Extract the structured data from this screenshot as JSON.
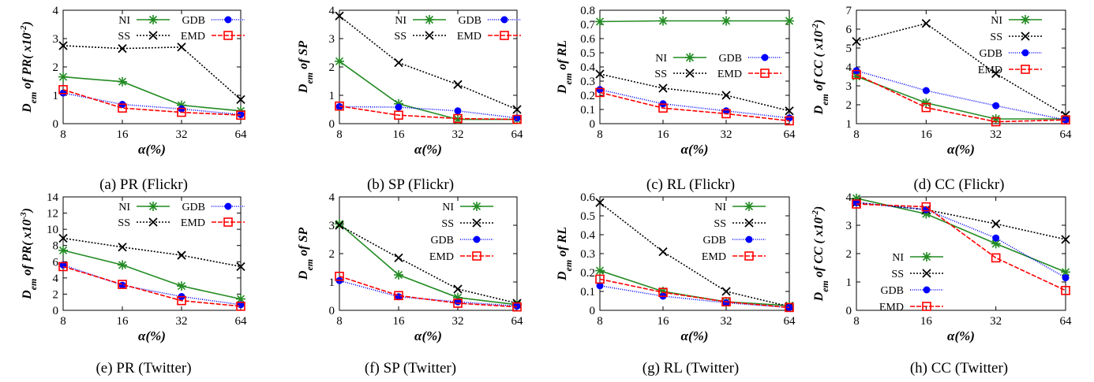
{
  "colors": {
    "NI": "#228b22",
    "SS": "#000000",
    "GDB": "#0000ff",
    "EMD": "#ff0000"
  },
  "chart_data": [
    {
      "type": "line",
      "caption": "(a) PR (Flickr)",
      "ylabel": "D_em of PR( x10^-2)",
      "xlabel": "α(%)",
      "categories": [
        "8",
        "16",
        "32",
        "64"
      ],
      "ylim": [
        0,
        4
      ],
      "yticks": [
        0,
        1,
        2,
        3,
        4
      ],
      "legend_layout": "two-column",
      "series": [
        {
          "name": "NI",
          "values": [
            1.65,
            1.48,
            0.65,
            0.45
          ]
        },
        {
          "name": "SS",
          "values": [
            2.75,
            2.65,
            2.7,
            0.85
          ]
        },
        {
          "name": "GDB",
          "values": [
            1.08,
            0.68,
            0.52,
            0.32
          ]
        },
        {
          "name": "EMD",
          "values": [
            1.2,
            0.55,
            0.4,
            0.3
          ]
        }
      ]
    },
    {
      "type": "line",
      "caption": "(b) SP (Flickr)",
      "ylabel": "D_em of SP",
      "xlabel": "α(%)",
      "categories": [
        "8",
        "16",
        "32",
        "64"
      ],
      "ylim": [
        0,
        4
      ],
      "yticks": [
        0,
        1,
        2,
        3,
        4
      ],
      "legend_layout": "two-column",
      "series": [
        {
          "name": "NI",
          "values": [
            2.2,
            0.7,
            0.15,
            0.15
          ]
        },
        {
          "name": "SS",
          "values": [
            3.8,
            2.15,
            1.38,
            0.5
          ]
        },
        {
          "name": "GDB",
          "values": [
            0.6,
            0.58,
            0.45,
            0.2
          ]
        },
        {
          "name": "EMD",
          "values": [
            0.62,
            0.3,
            0.18,
            0.15
          ]
        }
      ]
    },
    {
      "type": "line",
      "caption": "(c) RL (Flickr)",
      "ylabel": "D_em of RL",
      "xlabel": "α(%)",
      "categories": [
        "8",
        "16",
        "32",
        "64"
      ],
      "ylim": [
        0,
        0.8
      ],
      "yticks": [
        0,
        0.1,
        0.2,
        0.3,
        0.4,
        0.5,
        0.6,
        0.7,
        0.8
      ],
      "legend_layout": "two-column-middle",
      "series": [
        {
          "name": "NI",
          "values": [
            0.72,
            0.725,
            0.725,
            0.725
          ]
        },
        {
          "name": "SS",
          "values": [
            0.35,
            0.25,
            0.2,
            0.09
          ]
        },
        {
          "name": "GDB",
          "values": [
            0.24,
            0.14,
            0.09,
            0.04
          ]
        },
        {
          "name": "EMD",
          "values": [
            0.22,
            0.11,
            0.07,
            0.02
          ]
        }
      ]
    },
    {
      "type": "line",
      "caption": "(d) CC (Flickr)",
      "ylabel": "D_em of CC ( x10^-2)",
      "xlabel": "α(%)",
      "categories": [
        "8",
        "16",
        "32",
        "64"
      ],
      "ylim": [
        1,
        7
      ],
      "yticks": [
        1,
        2,
        3,
        4,
        5,
        6,
        7
      ],
      "legend_layout": "one-column-right",
      "series": [
        {
          "name": "NI",
          "values": [
            3.5,
            2.1,
            1.25,
            1.25
          ]
        },
        {
          "name": "SS",
          "values": [
            5.35,
            6.3,
            3.65,
            1.45
          ]
        },
        {
          "name": "GDB",
          "values": [
            3.8,
            2.75,
            1.95,
            1.2
          ]
        },
        {
          "name": "EMD",
          "values": [
            3.6,
            1.85,
            1.1,
            1.2
          ]
        }
      ]
    },
    {
      "type": "line",
      "caption": "(e) PR (Twitter)",
      "ylabel": "D_em of PR( x10^-3)",
      "xlabel": "α(%)",
      "categories": [
        "8",
        "16",
        "32",
        "64"
      ],
      "ylim": [
        0,
        14
      ],
      "yticks": [
        0,
        2,
        4,
        6,
        8,
        10,
        12,
        14
      ],
      "legend_layout": "two-column",
      "series": [
        {
          "name": "NI",
          "values": [
            7.4,
            5.6,
            3.0,
            1.4
          ]
        },
        {
          "name": "SS",
          "values": [
            8.9,
            7.8,
            6.8,
            5.4
          ]
        },
        {
          "name": "GDB",
          "values": [
            5.6,
            3.1,
            1.7,
            0.7
          ]
        },
        {
          "name": "EMD",
          "values": [
            5.4,
            3.2,
            1.2,
            0.5
          ]
        }
      ]
    },
    {
      "type": "line",
      "caption": "(f) SP (Twitter)",
      "ylabel": "D_em of SP",
      "xlabel": "α(%)",
      "categories": [
        "8",
        "16",
        "32",
        "64"
      ],
      "ylim": [
        0,
        4
      ],
      "yticks": [
        0,
        1,
        2,
        3,
        4
      ],
      "legend_layout": "one-column-right",
      "series": [
        {
          "name": "NI",
          "values": [
            3.05,
            1.25,
            0.45,
            0.2
          ]
        },
        {
          "name": "SS",
          "values": [
            3.0,
            1.85,
            0.75,
            0.25
          ]
        },
        {
          "name": "GDB",
          "values": [
            1.05,
            0.48,
            0.3,
            0.15
          ]
        },
        {
          "name": "EMD",
          "values": [
            1.2,
            0.52,
            0.25,
            0.12
          ]
        }
      ]
    },
    {
      "type": "line",
      "caption": "(g) RL (Twitter)",
      "ylabel": "D_em of RL",
      "xlabel": "α(%)",
      "categories": [
        "8",
        "16",
        "32",
        "64"
      ],
      "ylim": [
        0,
        0.6
      ],
      "yticks": [
        0,
        0.1,
        0.2,
        0.3,
        0.4,
        0.5,
        0.6
      ],
      "legend_layout": "one-column-right",
      "series": [
        {
          "name": "NI",
          "values": [
            0.21,
            0.1,
            0.045,
            0.025
          ]
        },
        {
          "name": "SS",
          "values": [
            0.57,
            0.31,
            0.1,
            0.02
          ]
        },
        {
          "name": "GDB",
          "values": [
            0.13,
            0.075,
            0.04,
            0.015
          ]
        },
        {
          "name": "EMD",
          "values": [
            0.165,
            0.095,
            0.045,
            0.015
          ]
        }
      ]
    },
    {
      "type": "line",
      "caption": "(h) CC (Twitter)",
      "ylabel": "D_em of CC ( x10^-2)",
      "xlabel": "α(%)",
      "categories": [
        "8",
        "16",
        "32",
        "64"
      ],
      "ylim": [
        0,
        4
      ],
      "yticks": [
        0,
        1,
        2,
        3,
        4
      ],
      "legend_layout": "one-column-lower-left",
      "series": [
        {
          "name": "NI",
          "values": [
            3.95,
            3.4,
            2.35,
            1.35
          ]
        },
        {
          "name": "SS",
          "values": [
            3.8,
            3.55,
            3.05,
            2.5
          ]
        },
        {
          "name": "GDB",
          "values": [
            3.8,
            3.55,
            2.55,
            1.15
          ]
        },
        {
          "name": "EMD",
          "values": [
            3.75,
            3.65,
            1.85,
            0.7
          ]
        }
      ]
    }
  ]
}
